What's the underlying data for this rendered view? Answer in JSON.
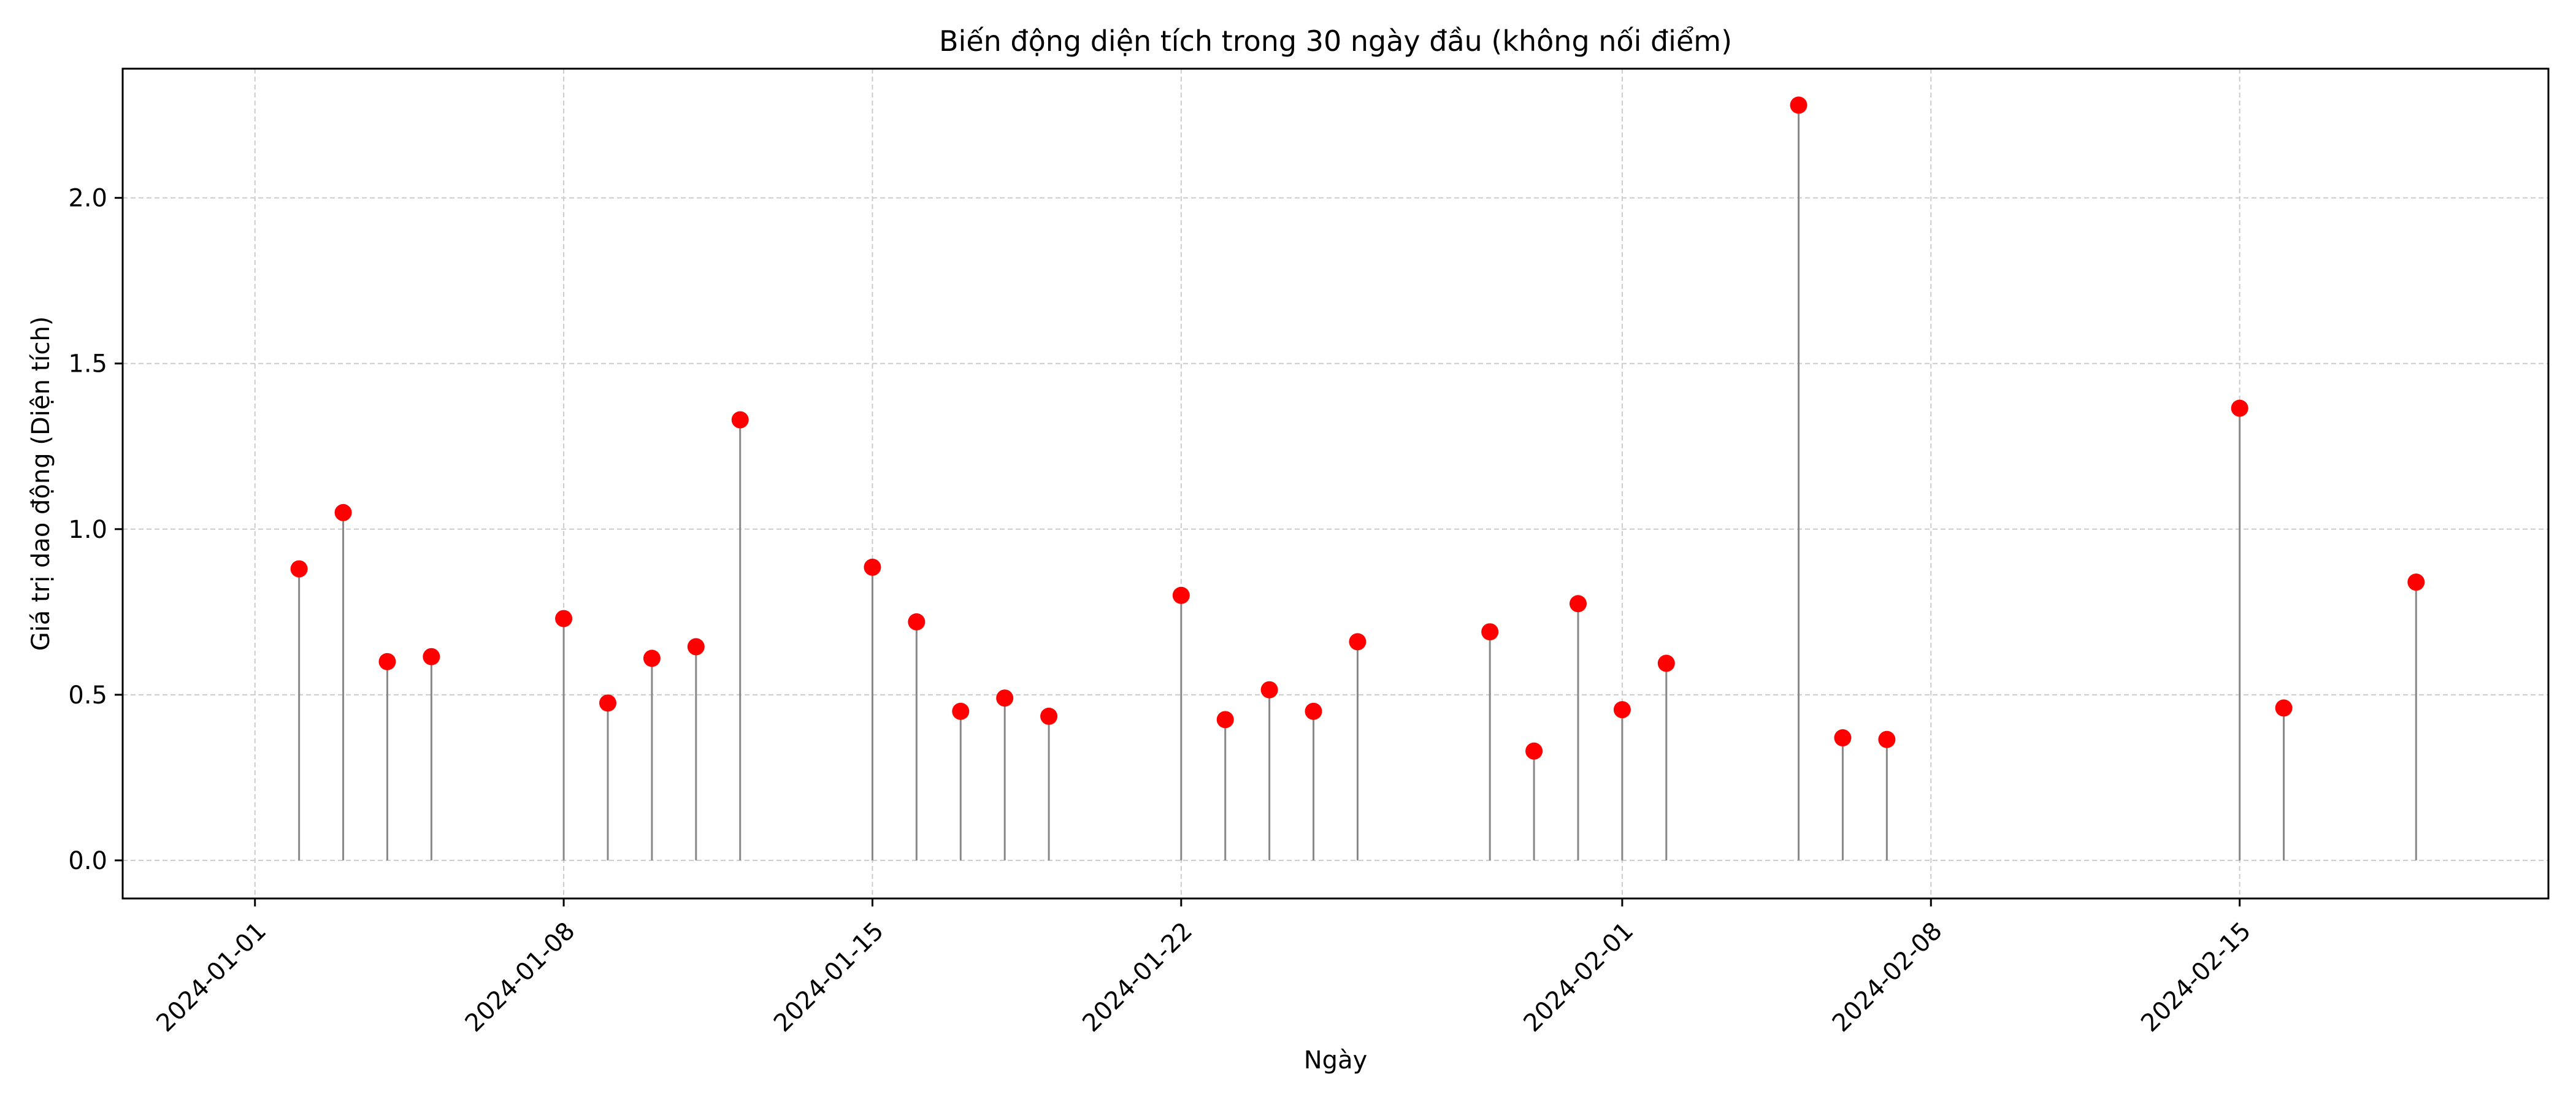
{
  "chart_data": {
    "type": "stem",
    "title": "Biến động diện tích trong 30 ngày đầu (không nối điểm)",
    "xlabel": "Ngày",
    "ylabel": "Giá trị dao động (Diện tích)",
    "xlim": [
      "2023-12-29",
      "2024-02-22"
    ],
    "ylim": [
      -0.115,
      2.39
    ],
    "x_ticks": [
      "2024-01-01",
      "2024-01-08",
      "2024-01-15",
      "2024-01-22",
      "2024-02-01",
      "2024-02-08",
      "2024-02-15"
    ],
    "y_ticks": [
      0.0,
      0.5,
      1.0,
      1.5,
      2.0
    ],
    "y_tick_labels": [
      "0.0",
      "0.5",
      "1.0",
      "1.5",
      "2.0"
    ],
    "grid": true,
    "legend": "none",
    "colors": {
      "marker": "#ff0000",
      "stem": "#888888",
      "grid": "#cccccc"
    },
    "points": [
      {
        "x": "2024-01-02",
        "y": 0.88
      },
      {
        "x": "2024-01-03",
        "y": 1.05
      },
      {
        "x": "2024-01-04",
        "y": 0.6
      },
      {
        "x": "2024-01-05",
        "y": 0.615
      },
      {
        "x": "2024-01-08",
        "y": 0.73
      },
      {
        "x": "2024-01-09",
        "y": 0.475
      },
      {
        "x": "2024-01-10",
        "y": 0.61
      },
      {
        "x": "2024-01-11",
        "y": 0.645
      },
      {
        "x": "2024-01-12",
        "y": 1.33
      },
      {
        "x": "2024-01-15",
        "y": 0.885
      },
      {
        "x": "2024-01-16",
        "y": 0.72
      },
      {
        "x": "2024-01-17",
        "y": 0.45
      },
      {
        "x": "2024-01-18",
        "y": 0.49
      },
      {
        "x": "2024-01-19",
        "y": 0.435
      },
      {
        "x": "2024-01-22",
        "y": 0.8
      },
      {
        "x": "2024-01-23",
        "y": 0.425
      },
      {
        "x": "2024-01-24",
        "y": 0.515
      },
      {
        "x": "2024-01-25",
        "y": 0.45
      },
      {
        "x": "2024-01-26",
        "y": 0.66
      },
      {
        "x": "2024-01-29",
        "y": 0.69
      },
      {
        "x": "2024-01-30",
        "y": 0.33
      },
      {
        "x": "2024-01-31",
        "y": 0.775
      },
      {
        "x": "2024-02-01",
        "y": 0.455
      },
      {
        "x": "2024-02-02",
        "y": 0.595
      },
      {
        "x": "2024-02-05",
        "y": 2.28
      },
      {
        "x": "2024-02-06",
        "y": 0.37
      },
      {
        "x": "2024-02-07",
        "y": 0.365
      },
      {
        "x": "2024-02-15",
        "y": 1.365
      },
      {
        "x": "2024-02-16",
        "y": 0.46
      },
      {
        "x": "2024-02-19",
        "y": 0.84
      }
    ]
  }
}
